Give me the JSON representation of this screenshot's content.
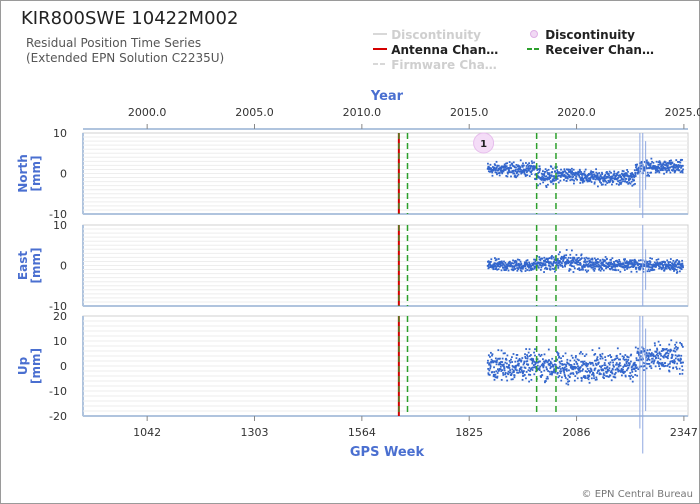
{
  "header": {
    "station": "KIR800SWE 10422M002",
    "subtitle_line1": "Residual Position Time Series",
    "subtitle_line2": "(Extended EPN Solution C2235U)"
  },
  "legend": [
    {
      "label": "Discontinuity",
      "style": "line",
      "color": "#d8d8d8",
      "dimmed": true
    },
    {
      "label": "Discontinuity",
      "style": "circle",
      "color": "#e4b8ea",
      "dimmed": false
    },
    {
      "label": "Antenna Chan…",
      "style": "line",
      "color": "#d40000",
      "dimmed": false
    },
    {
      "label": "Receiver Chan…",
      "style": "dashed",
      "color": "#2ca02c",
      "dimmed": false
    },
    {
      "label": "Firmware Cha…",
      "style": "dashed",
      "color": "#d8d8d8",
      "dimmed": true
    }
  ],
  "credit": "© EPN Central Bureau",
  "chart_data": {
    "type": "scatter",
    "x_top": {
      "label": "Year",
      "ticks": [
        "2000.0",
        "2005.0",
        "2010.0",
        "2015.0",
        "2020.0",
        "2025.0"
      ],
      "values": [
        2000,
        2005,
        2010,
        2015,
        2020,
        2025
      ]
    },
    "x_bottom": {
      "label": "GPS Week",
      "ticks": [
        "1042",
        "1303",
        "1564",
        "1825",
        "2086",
        "2347"
      ],
      "values": [
        1042,
        1303,
        1564,
        1825,
        2086,
        2347
      ]
    },
    "xlim_week": [
      886,
      2357
    ],
    "panels": [
      {
        "name": "North",
        "ylabel": "North\n[mm]",
        "ylim": [
          -10,
          10
        ],
        "yticks": [
          "10",
          "0",
          "-10"
        ],
        "ytick_values": [
          10,
          0,
          -10
        ]
      },
      {
        "name": "East",
        "ylabel": "East\n[mm]",
        "ylim": [
          -10,
          10
        ],
        "yticks": [
          "10",
          "0",
          "-10"
        ],
        "ytick_values": [
          10,
          0,
          -10
        ]
      },
      {
        "name": "Up",
        "ylabel": "Up\n[mm]",
        "ylim": [
          -20,
          20
        ],
        "yticks": [
          "20",
          "10",
          "0",
          "-10",
          "-20"
        ],
        "ytick_values": [
          20,
          10,
          0,
          -10,
          -20
        ]
      }
    ],
    "antenna_change_weeks": [
      1654
    ],
    "receiver_change_weeks": [
      1675,
      1989,
      2036
    ],
    "discontinuity_markers": [
      {
        "week": 1860,
        "label": "1"
      }
    ],
    "series": [
      {
        "component": "North",
        "color": "#3366cc",
        "segments": [
          {
            "start": 1870,
            "end": 1985,
            "mean": 1.0,
            "spread": 1.5
          },
          {
            "start": 1985,
            "end": 2040,
            "mean": -0.5,
            "spread": 1.8
          },
          {
            "start": 2040,
            "end": 2100,
            "mean": -0.3,
            "spread": 1.5
          },
          {
            "start": 2100,
            "end": 2230,
            "mean": -1.0,
            "spread": 1.5
          },
          {
            "start": 2230,
            "end": 2345,
            "mean": 1.5,
            "spread": 1.5
          }
        ]
      },
      {
        "component": "East",
        "color": "#3366cc",
        "segments": [
          {
            "start": 1870,
            "end": 1985,
            "mean": 0.0,
            "spread": 1.3
          },
          {
            "start": 1985,
            "end": 2040,
            "mean": 0.5,
            "spread": 1.5
          },
          {
            "start": 2040,
            "end": 2100,
            "mean": 1.0,
            "spread": 2.0
          },
          {
            "start": 2100,
            "end": 2230,
            "mean": 0.3,
            "spread": 1.3
          },
          {
            "start": 2230,
            "end": 2345,
            "mean": 0.0,
            "spread": 1.3
          }
        ]
      },
      {
        "component": "Up",
        "color": "#3366cc",
        "segments": [
          {
            "start": 1870,
            "end": 1985,
            "mean": 0.0,
            "spread": 5.0
          },
          {
            "start": 1985,
            "end": 2040,
            "mean": 0.0,
            "spread": 5.0
          },
          {
            "start": 2040,
            "end": 2100,
            "mean": -1.0,
            "spread": 5.0
          },
          {
            "start": 2100,
            "end": 2230,
            "mean": 0.0,
            "spread": 5.0
          },
          {
            "start": 2230,
            "end": 2345,
            "mean": 3.0,
            "spread": 5.0
          }
        ]
      }
    ],
    "outliers": [
      {
        "component": "North",
        "week": 2240,
        "low": -8.5,
        "high": 10.0
      },
      {
        "component": "North",
        "week": 2247,
        "low": -11.0,
        "high": 10.0
      },
      {
        "component": "North",
        "week": 2254,
        "low": -4.0,
        "high": 8.0
      },
      {
        "component": "East",
        "week": 2247,
        "low": -10.0,
        "high": 10.0
      },
      {
        "component": "East",
        "week": 2254,
        "low": -6.0,
        "high": 4.0
      },
      {
        "component": "Up",
        "week": 2240,
        "low": -25.0,
        "high": 20.0
      },
      {
        "component": "Up",
        "week": 2247,
        "low": -35.0,
        "high": 20.0
      },
      {
        "component": "Up",
        "week": 2254,
        "low": -18.0,
        "high": 15.0
      }
    ]
  }
}
